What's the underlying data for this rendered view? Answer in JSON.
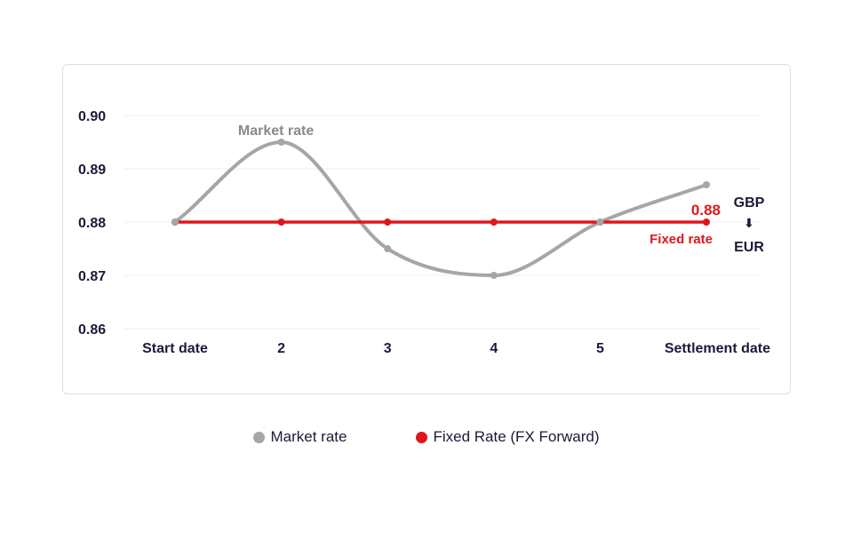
{
  "colors": {
    "market": "#a6a6a6",
    "fixed": "#e0161b",
    "text": "#1a1a3a",
    "grid": "#efefef"
  },
  "chart_data": {
    "type": "line",
    "categories": [
      "Start date",
      "2",
      "3",
      "4",
      "5",
      "Settlement date"
    ],
    "series": [
      {
        "name": "Market rate",
        "values": [
          0.88,
          0.895,
          0.875,
          0.87,
          0.88,
          0.887
        ],
        "smooth": true
      },
      {
        "name": "Fixed rate",
        "values": [
          0.88,
          0.88,
          0.88,
          0.88,
          0.88,
          0.88
        ]
      }
    ],
    "ylim": [
      0.86,
      0.9
    ],
    "yticks": [
      "0.86",
      "0.87",
      "0.88",
      "0.89",
      "0.90"
    ],
    "grid": true,
    "annotations": {
      "market_label": "Market rate",
      "fixed_label": "Fixed rate",
      "fixed_value": "0.88",
      "pair_from": "GBP",
      "pair_arrow": "⬇",
      "pair_to": "EUR"
    }
  },
  "legend": [
    {
      "label": "Market rate",
      "color": "#a6a6a6"
    },
    {
      "label": "Fixed Rate (FX Forward)",
      "color": "#e0161b"
    }
  ]
}
